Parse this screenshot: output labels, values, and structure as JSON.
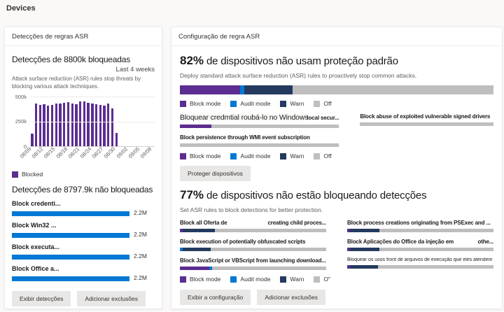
{
  "page": {
    "title": "Devices"
  },
  "colors": {
    "block": "#5C2D91",
    "audit": "#0078D4",
    "warn": "#243A5E",
    "off": "#BEBEBE"
  },
  "legend": {
    "block": "Block mode",
    "audit": "Audit mode",
    "warn": "Warn",
    "off": "Off",
    "off_glitch": "O\""
  },
  "chart_data": {
    "type": "bar",
    "title": "Detecções de 8800k bloqueadas",
    "xlabel": "",
    "ylabel": "",
    "ylim": [
      0,
      500000
    ],
    "ylim_k": 500,
    "y_tick_labels": [
      "0",
      "250k",
      "500k"
    ],
    "x_tick_labels": [
      "08/09",
      "08/12",
      "08/15",
      "08/18",
      "08/21",
      "08/24",
      "08/27",
      "08/30",
      "09/02",
      "09/05",
      "09/08"
    ],
    "x_slots": 31,
    "bar_color": "#5C2D91",
    "legend_entries": [
      "Blocked"
    ],
    "categories": [
      "08/09",
      "08/10",
      "08/11",
      "08/12",
      "08/13",
      "08/14",
      "08/15",
      "08/16",
      "08/17",
      "08/18",
      "08/19",
      "08/20",
      "08/21",
      "08/22",
      "08/23",
      "08/24",
      "08/25",
      "08/26",
      "08/27",
      "08/28",
      "08/29",
      "08/30"
    ],
    "values_k": [
      130,
      430,
      420,
      425,
      410,
      420,
      430,
      430,
      440,
      445,
      430,
      425,
      455,
      450,
      440,
      430,
      425,
      420,
      410,
      430,
      380,
      135
    ]
  },
  "left_card": {
    "header": "Detecções de regras ASR",
    "blocked_section": {
      "title": "Detecções de 8800k bloqueadas",
      "period": "Last 4 weeks",
      "description": "Attack surface reduction (ASR) rules stop threats by blocking various attack techniques.",
      "legend": "Blocked"
    },
    "unblocked_section": {
      "title": "Detecções de 8797.9k não bloqueadas",
      "rows": [
        {
          "label": "Block credenti...",
          "value": "2.2M",
          "pct": 100
        },
        {
          "label": "Block Win32 ...",
          "value": "2.2M",
          "pct": 100
        },
        {
          "label": "Block executa...",
          "value": "2.2M",
          "pct": 100
        },
        {
          "label": "Block Office a...",
          "value": "2.2M",
          "pct": 100
        }
      ]
    },
    "buttons": {
      "view": "Exibir detecções",
      "exclusions": "Adicionar exclusões"
    }
  },
  "right_card": {
    "header": "Configuração de regra ASR",
    "standard_section": {
      "stat": "82%",
      "title": " de dispositivos não usam proteção padrão",
      "description": "Deploy standard attack surface reduction (ASR) rules to proactively stop common attacks.",
      "bar": [
        {
          "mode": "block",
          "pct": 19.3
        },
        {
          "mode": "audit",
          "pct": 1.2
        },
        {
          "mode": "warn",
          "pct": 15.5
        },
        {
          "mode": "off",
          "pct": 64
        }
      ],
      "rules": [
        {
          "title": "Bloquear credmtial roubá-lo no Windows",
          "suffix": "local secur...",
          "big": true,
          "segments": [
            {
              "mode": "block",
              "pct": 20
            },
            {
              "mode": "off",
              "pct": 80
            }
          ]
        },
        {
          "title": "Block abuse of exploited vulnerable signed drivers",
          "segments": [
            {
              "mode": "off",
              "pct": 100
            }
          ]
        },
        {
          "title": "Block persistence through WMI event subscription",
          "segments": [
            {
              "mode": "off",
              "pct": 100
            }
          ]
        }
      ],
      "button": "Proteger dispositivos"
    },
    "blocking_section": {
      "stat": "77%",
      "title": " de dispositivos não estão bloqueando detecções",
      "description": "Set ASR rules to block detections for better protection.",
      "rules": [
        {
          "title": "Block all Oferta de",
          "title_right": "creating child proces...",
          "segments": [
            {
              "mode": "block",
              "pct": 2
            },
            {
              "mode": "warn",
              "pct": 22
            },
            {
              "mode": "off",
              "pct": 76
            }
          ]
        },
        {
          "title": "Block process creations originating from PSExec and ...",
          "segments": [
            {
              "mode": "block",
              "pct": 2
            },
            {
              "mode": "warn",
              "pct": 20
            },
            {
              "mode": "off",
              "pct": 78
            }
          ]
        },
        {
          "title": "Block execution of potentially obfuscated scripts",
          "segments": [
            {
              "mode": "audit",
              "pct": 2
            },
            {
              "mode": "warn",
              "pct": 19
            },
            {
              "mode": "off",
              "pct": 79
            }
          ]
        },
        {
          "title": "Block Aplicações do Office da injeção em",
          "title_right": "othe...",
          "segments": [
            {
              "mode": "block",
              "pct": 2
            },
            {
              "mode": "warn",
              "pct": 20
            },
            {
              "mode": "off",
              "pct": 78
            }
          ]
        },
        {
          "title": "Block JavaScript or VBScript from launching download...",
          "segments": [
            {
              "mode": "block",
              "pct": 20
            },
            {
              "mode": "audit",
              "pct": 2
            },
            {
              "mode": "off",
              "pct": 78
            }
          ]
        },
        {
          "title": "Bloquear os usos front de arquivos de execução que eles atendem",
          "small": true,
          "segments": [
            {
              "mode": "block",
              "pct": 2
            },
            {
              "mode": "warn",
              "pct": 19
            },
            {
              "mode": "off",
              "pct": 79
            }
          ]
        }
      ],
      "buttons": {
        "view": "Exibir a configuração",
        "exclusions": "Adicionar exclusões"
      }
    }
  }
}
